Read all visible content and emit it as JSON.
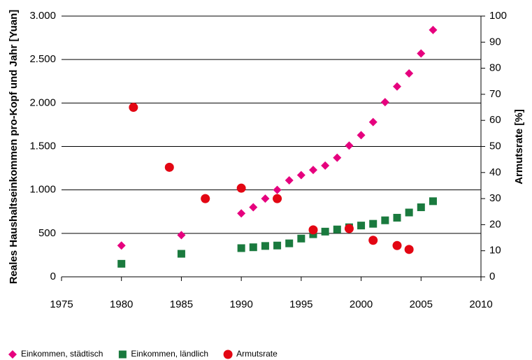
{
  "chart_data": {
    "type": "scatter",
    "ylabel": "Reales Haushaltseinkommen pro-Kopf und Jahr [Yuan]",
    "y2label": "Armutsrate [%]",
    "xlim": [
      1975,
      2010
    ],
    "xticks": [
      1975,
      1980,
      1985,
      1990,
      1995,
      2000,
      2005,
      2010
    ],
    "ylim": [
      0,
      3000
    ],
    "yticks": [
      0,
      500,
      {
        "value": 1000,
        "label": "1.000"
      },
      {
        "value": 1500,
        "label": "1.500"
      },
      {
        "value": 2000,
        "label": "2.000"
      },
      {
        "value": 2500,
        "label": "2.500"
      },
      {
        "value": 3000,
        "label": "3.000"
      }
    ],
    "y2lim": [
      0,
      100
    ],
    "y2ticks": [
      0,
      10,
      20,
      30,
      40,
      50,
      60,
      70,
      80,
      90,
      100
    ],
    "grid": true,
    "legend": "bottom",
    "series": [
      {
        "name": "Einkommen, städtisch",
        "color": "#e6007e",
        "marker": "diamond",
        "x": [
          1980,
          1985,
          1990,
          1991,
          1992,
          1993,
          1994,
          1995,
          1996,
          1997,
          1998,
          1999,
          2000,
          2001,
          2002,
          2003,
          2004,
          2005,
          2006
        ],
        "values": [
          360,
          480,
          730,
          800,
          900,
          1000,
          1110,
          1170,
          1230,
          1280,
          1370,
          1510,
          1630,
          1780,
          2010,
          2190,
          2340,
          2570,
          2840
        ]
      },
      {
        "name": "Einkommen, ländlich",
        "color": "#1a7a3e",
        "marker": "square",
        "x": [
          1980,
          1985,
          1990,
          1991,
          1992,
          1993,
          1994,
          1995,
          1996,
          1997,
          1998,
          1999,
          2000,
          2001,
          2002,
          2003,
          2004,
          2005,
          2006
        ],
        "values": [
          150,
          265,
          330,
          340,
          355,
          360,
          385,
          440,
          490,
          520,
          545,
          570,
          590,
          610,
          650,
          680,
          740,
          800,
          870
        ]
      },
      {
        "name": "Armutsrate",
        "color": "#e30613",
        "marker": "circle",
        "axis": "y2",
        "x": [
          1981,
          1984,
          1987,
          1990,
          1993,
          1996,
          1999,
          2001,
          2003,
          2004
        ],
        "values": [
          65,
          42,
          30,
          34,
          30,
          18,
          18.5,
          14,
          12,
          10.5
        ]
      }
    ]
  }
}
